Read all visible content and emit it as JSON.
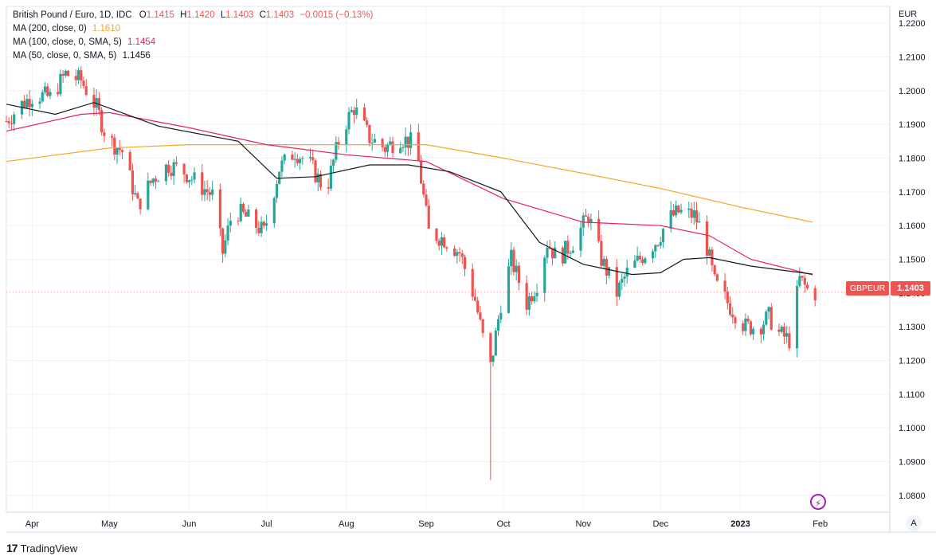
{
  "legend": {
    "title": "British Pound / Euro, 1D, IDC",
    "ohlc": [
      {
        "key": "O",
        "value": "1.1415"
      },
      {
        "key": "H",
        "value": "1.1420"
      },
      {
        "key": "L",
        "value": "1.1403"
      },
      {
        "key": "C",
        "value": "1.1403"
      }
    ],
    "change": "−0.0015 (−0.13%)",
    "ma200_label": "MA (200, close, 0)",
    "ma200_value": "1.1610",
    "ma100_label": "MA (100, close, 0, SMA, 5)",
    "ma100_value": "1.1454",
    "ma50_label": "MA (50, close, 0, SMA, 5)",
    "ma50_value": "1.1456"
  },
  "axis": {
    "currency": "EUR"
  },
  "price_badge": {
    "symbol": "GBPEUR",
    "price": "1.1403"
  },
  "branding": {
    "logo_mark": "17",
    "name": "TradingView"
  },
  "controls": {
    "auto_scale": "A"
  },
  "colors": {
    "up": "#26a69a",
    "down": "#ef5350",
    "ma200": "#f5a623",
    "ma100": "#e91e63",
    "ma50": "#131722",
    "grid": "#f0f3fa"
  },
  "chart_data": {
    "type": "candlestick",
    "title": "British Pound / Euro, 1D, IDC",
    "ylabel": "EUR",
    "ylim": [
      1.075,
      1.225
    ],
    "yticks": [
      "1.2200",
      "1.2100",
      "1.2000",
      "1.1900",
      "1.1800",
      "1.1700",
      "1.1600",
      "1.1500",
      "1.1400",
      "1.1300",
      "1.1200",
      "1.1100",
      "1.1000",
      "1.0900",
      "1.0800"
    ],
    "xlabels": [
      "Apr",
      "May",
      "Jun",
      "Jul",
      "Aug",
      "Sep",
      "Oct",
      "Nov",
      "Dec",
      "2023",
      "Feb"
    ],
    "x_range": [
      "2022-03-22",
      "2023-02-28"
    ],
    "close_path": [
      [
        "2022-03-22",
        1.191
      ],
      [
        "2022-03-28",
        1.196
      ],
      [
        "2022-04-02",
        1.199
      ],
      [
        "2022-04-08",
        1.198
      ],
      [
        "2022-04-14",
        1.205
      ],
      [
        "2022-04-20",
        1.203
      ],
      [
        "2022-04-26",
        1.195
      ],
      [
        "2022-04-30",
        1.186
      ],
      [
        "2022-05-06",
        1.182
      ],
      [
        "2022-05-12",
        1.166
      ],
      [
        "2022-05-18",
        1.174
      ],
      [
        "2022-05-24",
        1.178
      ],
      [
        "2022-05-30",
        1.176
      ],
      [
        "2022-06-05",
        1.172
      ],
      [
        "2022-06-10",
        1.169
      ],
      [
        "2022-06-14",
        1.152
      ],
      [
        "2022-06-18",
        1.165
      ],
      [
        "2022-06-24",
        1.162
      ],
      [
        "2022-06-30",
        1.158
      ],
      [
        "2022-07-06",
        1.177
      ],
      [
        "2022-07-12",
        1.182
      ],
      [
        "2022-07-18",
        1.178
      ],
      [
        "2022-07-24",
        1.17
      ],
      [
        "2022-07-30",
        1.188
      ],
      [
        "2022-08-04",
        1.195
      ],
      [
        "2022-08-10",
        1.186
      ],
      [
        "2022-08-16",
        1.183
      ],
      [
        "2022-08-22",
        1.186
      ],
      [
        "2022-08-28",
        1.184
      ],
      [
        "2022-09-02",
        1.158
      ],
      [
        "2022-09-08",
        1.156
      ],
      [
        "2022-09-14",
        1.152
      ],
      [
        "2022-09-20",
        1.138
      ],
      [
        "2022-09-24",
        1.123
      ],
      [
        "2022-09-26",
        1.118
      ],
      [
        "2022-09-30",
        1.137
      ],
      [
        "2022-10-04",
        1.15
      ],
      [
        "2022-10-10",
        1.137
      ],
      [
        "2022-10-14",
        1.143
      ],
      [
        "2022-10-18",
        1.155
      ],
      [
        "2022-10-22",
        1.15
      ],
      [
        "2022-10-28",
        1.155
      ],
      [
        "2022-11-03",
        1.163
      ],
      [
        "2022-11-08",
        1.15
      ],
      [
        "2022-11-14",
        1.14
      ],
      [
        "2022-11-18",
        1.146
      ],
      [
        "2022-11-24",
        1.151
      ],
      [
        "2022-11-30",
        1.156
      ],
      [
        "2022-12-04",
        1.162
      ],
      [
        "2022-12-08",
        1.164
      ],
      [
        "2022-12-14",
        1.163
      ],
      [
        "2022-12-18",
        1.157
      ],
      [
        "2022-12-22",
        1.143
      ],
      [
        "2022-12-28",
        1.136
      ],
      [
        "2023-01-03",
        1.13
      ],
      [
        "2023-01-08",
        1.13
      ],
      [
        "2023-01-12",
        1.133
      ],
      [
        "2023-01-16",
        1.128
      ],
      [
        "2023-01-20",
        1.126
      ],
      [
        "2023-01-24",
        1.144
      ],
      [
        "2023-01-28",
        1.14
      ]
    ],
    "series": [
      {
        "name": "MA (200, close, 0)",
        "last": 1.161,
        "points": [
          [
            "2022-03-22",
            1.179
          ],
          [
            "2022-05-01",
            1.183
          ],
          [
            "2022-06-01",
            1.184
          ],
          [
            "2022-07-01",
            1.184
          ],
          [
            "2022-08-01",
            1.184
          ],
          [
            "2022-09-01",
            1.184
          ],
          [
            "2022-10-01",
            1.18
          ],
          [
            "2022-11-01",
            1.1755
          ],
          [
            "2022-12-01",
            1.171
          ],
          [
            "2023-01-01",
            1.1655
          ],
          [
            "2023-01-29",
            1.161
          ]
        ]
      },
      {
        "name": "MA (100, close, 0, SMA, 5)",
        "last": 1.1454,
        "points": [
          [
            "2022-03-22",
            1.188
          ],
          [
            "2022-04-20",
            1.193
          ],
          [
            "2022-05-01",
            1.1935
          ],
          [
            "2022-06-01",
            1.189
          ],
          [
            "2022-07-01",
            1.184
          ],
          [
            "2022-08-01",
            1.181
          ],
          [
            "2022-09-01",
            1.179
          ],
          [
            "2022-10-01",
            1.168
          ],
          [
            "2022-11-01",
            1.161
          ],
          [
            "2022-12-01",
            1.16
          ],
          [
            "2022-12-20",
            1.157
          ],
          [
            "2023-01-05",
            1.15
          ],
          [
            "2023-01-29",
            1.1454
          ]
        ]
      },
      {
        "name": "MA (50, close, 0, SMA, 5)",
        "last": 1.1456,
        "points": [
          [
            "2022-03-22",
            1.196
          ],
          [
            "2022-04-10",
            1.193
          ],
          [
            "2022-04-25",
            1.1965
          ],
          [
            "2022-05-20",
            1.1895
          ],
          [
            "2022-06-20",
            1.185
          ],
          [
            "2022-07-05",
            1.174
          ],
          [
            "2022-07-20",
            1.1745
          ],
          [
            "2022-08-10",
            1.178
          ],
          [
            "2022-08-25",
            1.178
          ],
          [
            "2022-09-10",
            1.176
          ],
          [
            "2022-09-30",
            1.17
          ],
          [
            "2022-10-15",
            1.155
          ],
          [
            "2022-11-01",
            1.1485
          ],
          [
            "2022-11-20",
            1.1455
          ],
          [
            "2022-12-01",
            1.146
          ],
          [
            "2022-12-10",
            1.15
          ],
          [
            "2022-12-20",
            1.1505
          ],
          [
            "2023-01-05",
            1.148
          ],
          [
            "2023-01-29",
            1.1456
          ]
        ]
      }
    ],
    "last_price": 1.1403
  }
}
